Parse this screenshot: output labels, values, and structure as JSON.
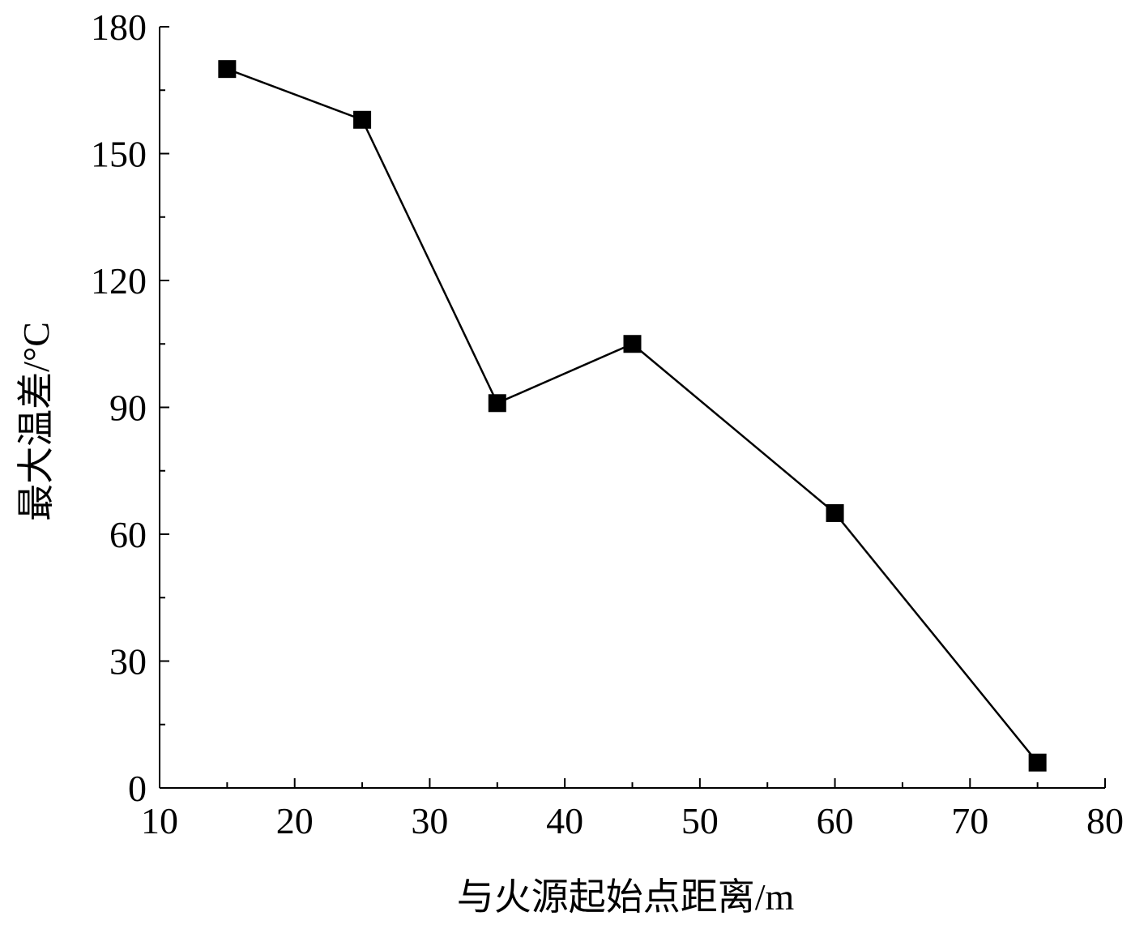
{
  "chart_data": {
    "type": "line",
    "title": "",
    "xlabel": "与火源起始点距离/m",
    "ylabel": "最大温差/°C",
    "xlim": [
      10,
      80
    ],
    "ylim": [
      0,
      180
    ],
    "x_ticks": [
      10,
      20,
      30,
      40,
      50,
      60,
      70,
      80
    ],
    "y_ticks": [
      0,
      30,
      60,
      90,
      120,
      150,
      180
    ],
    "x_minor_step": 5,
    "y_minor_step": 15,
    "grid": false,
    "legend": "none",
    "marker": "square",
    "line_color": "#000000",
    "marker_color": "#000000",
    "series": [
      {
        "x": [
          15,
          25,
          35,
          45,
          60,
          75
        ],
        "values": [
          170,
          158,
          91,
          105,
          65,
          6
        ]
      }
    ]
  }
}
